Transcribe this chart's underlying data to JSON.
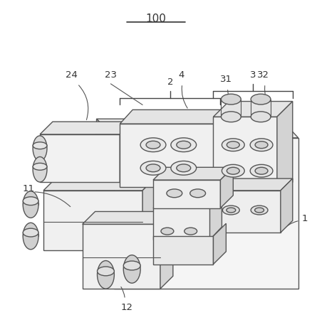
{
  "bg_color": "#ffffff",
  "line_color": "#555555",
  "dark_color": "#333333",
  "face_light": "#f5f5f5",
  "face_mid": "#e8e8e8",
  "face_dark": "#d8d8d8"
}
